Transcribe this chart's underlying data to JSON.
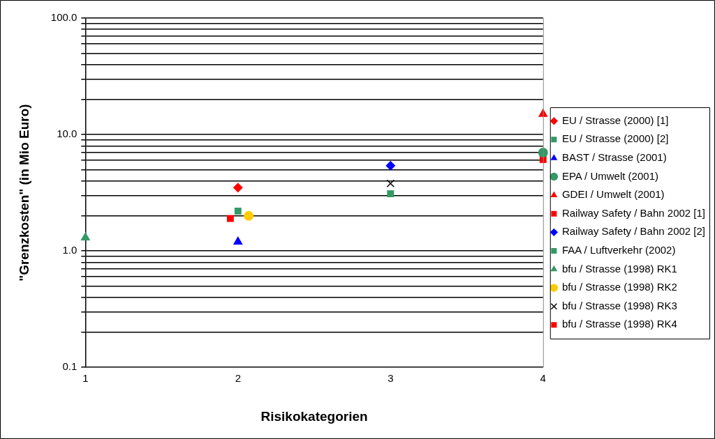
{
  "chart_data": {
    "type": "scatter",
    "xlabel": "Risikokategorien",
    "ylabel": "\"Grenzkosten\" (in Mio Euro)",
    "log": "y",
    "grid": "y",
    "legend": "right",
    "xlim": [
      1,
      4
    ],
    "xticks": [
      1,
      2,
      3,
      4
    ],
    "ylim": [
      0.1,
      100
    ],
    "yticks": [
      {
        "value": 0.1,
        "label": "0.1"
      },
      {
        "value": 0.2,
        "label": null
      },
      {
        "value": 0.3,
        "label": null
      },
      {
        "value": 0.4,
        "label": null
      },
      {
        "value": 0.5,
        "label": null
      },
      {
        "value": 0.6,
        "label": null
      },
      {
        "value": 0.7,
        "label": null
      },
      {
        "value": 0.8,
        "label": null
      },
      {
        "value": 0.9,
        "label": null
      },
      {
        "value": 1,
        "label": "1.0"
      },
      {
        "value": 2,
        "label": null
      },
      {
        "value": 3,
        "label": null
      },
      {
        "value": 4,
        "label": null
      },
      {
        "value": 5,
        "label": null
      },
      {
        "value": 6,
        "label": null
      },
      {
        "value": 7,
        "label": null
      },
      {
        "value": 8,
        "label": null
      },
      {
        "value": 9,
        "label": null
      },
      {
        "value": 10,
        "label": "10.0"
      },
      {
        "value": 20,
        "label": null
      },
      {
        "value": 30,
        "label": null
      },
      {
        "value": 40,
        "label": null
      },
      {
        "value": 50,
        "label": null
      },
      {
        "value": 60,
        "label": null
      },
      {
        "value": 70,
        "label": null
      },
      {
        "value": 80,
        "label": null
      },
      {
        "value": 90,
        "label": null
      },
      {
        "value": 100,
        "label": "100.0"
      }
    ],
    "series": [
      {
        "name": "EU / Strasse (2000) [1]",
        "color": "#ff0000",
        "marker": "diamond",
        "x": [
          2
        ],
        "values": [
          3.5
        ]
      },
      {
        "name": "EU / Strasse (2000) [2]",
        "color": "#339966",
        "marker": "square",
        "x": [
          2
        ],
        "values": [
          2.2
        ]
      },
      {
        "name": "BAST / Strasse (2001)",
        "color": "#0000ff",
        "marker": "triangle",
        "x": [
          2
        ],
        "values": [
          1.2
        ]
      },
      {
        "name": "EPA / Umwelt (2001)",
        "color": "#339966",
        "marker": "circle",
        "x": [
          4
        ],
        "values": [
          7.0
        ]
      },
      {
        "name": "GDEI / Umwelt (2001)",
        "color": "#ff0000",
        "marker": "triangle",
        "x": [
          4
        ],
        "values": [
          15
        ]
      },
      {
        "name": "Railway Safety / Bahn 2002 [1]",
        "color": "#ff0000",
        "marker": "square",
        "x": [
          1.95
        ],
        "values": [
          1.9
        ]
      },
      {
        "name": "Railway Safety / Bahn 2002 [2]",
        "color": "#0000ff",
        "marker": "diamond",
        "x": [
          3
        ],
        "values": [
          5.4
        ]
      },
      {
        "name": "FAA / Luftverkehr (2002)",
        "color": "#339966",
        "marker": "square",
        "x": [
          3
        ],
        "values": [
          3.1
        ]
      },
      {
        "name": "bfu / Strasse (1998) RK1",
        "color": "#339966",
        "marker": "triangle",
        "x": [
          1
        ],
        "values": [
          1.3
        ]
      },
      {
        "name": "bfu / Strasse (1998) RK2",
        "color": "#ffcc00",
        "marker": "circle",
        "x": [
          2.07
        ],
        "values": [
          2.0
        ]
      },
      {
        "name": "bfu / Strasse (1998) RK3",
        "color": "#000000",
        "marker": "cross",
        "x": [
          3
        ],
        "values": [
          3.8
        ]
      },
      {
        "name": "bfu / Strasse (1998) RK4",
        "color": "#ff0000",
        "marker": "square",
        "x": [
          4
        ],
        "values": [
          6.1
        ]
      }
    ]
  }
}
